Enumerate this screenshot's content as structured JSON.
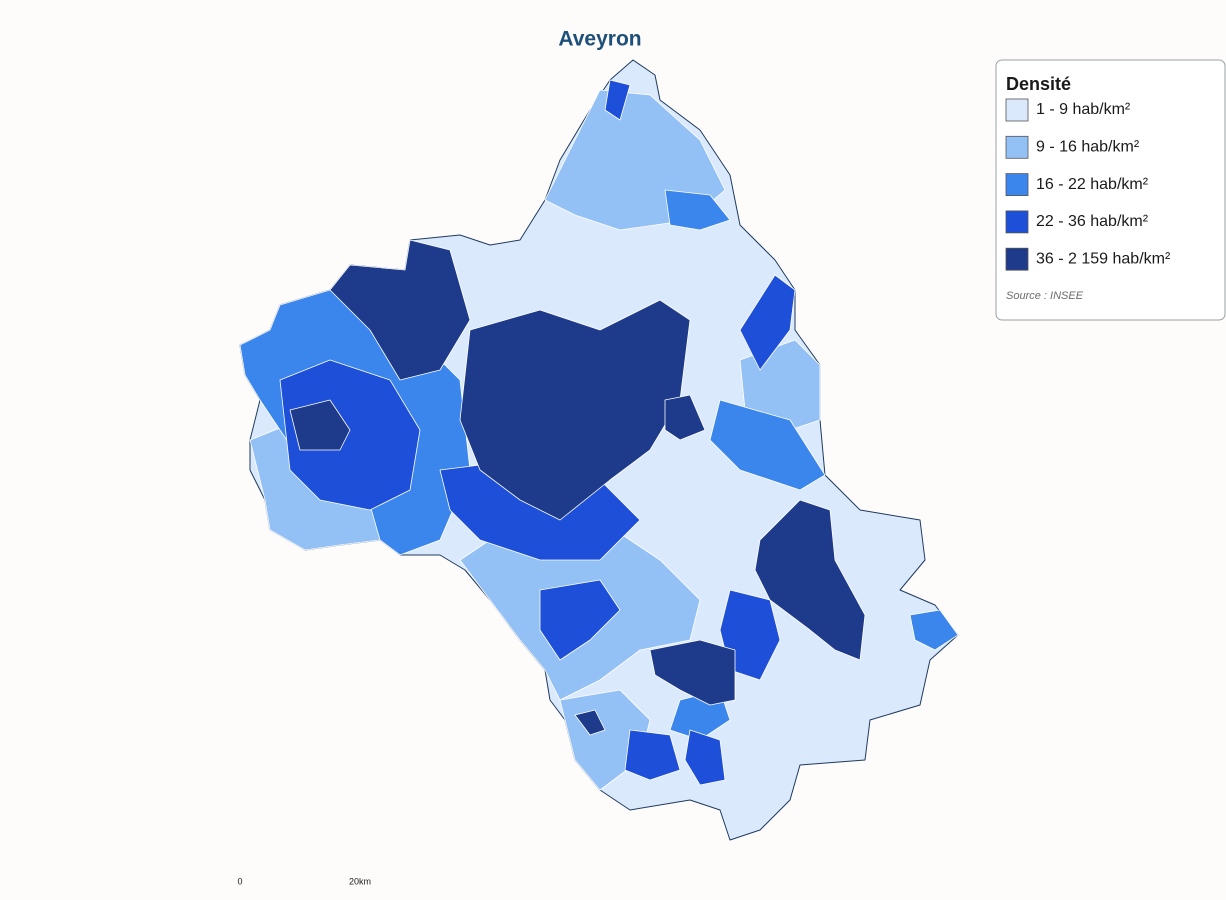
{
  "title": "Aveyron",
  "legend": {
    "title": "Densité",
    "items": [
      {
        "label": "1 - 9 hab/km²",
        "color": "#dbe9fd"
      },
      {
        "label": "9 - 16 hab/km²",
        "color": "#93c1f6"
      },
      {
        "label": "16 - 22 hab/km²",
        "color": "#3b86ec"
      },
      {
        "label": "22 - 36 hab/km²",
        "color": "#1d4fd8"
      },
      {
        "label": "36 - 2 159 hab/km²",
        "color": "#1e3a8a"
      }
    ],
    "source": "Source : INSEE"
  },
  "scale": {
    "start": "0",
    "end": "20km"
  }
}
